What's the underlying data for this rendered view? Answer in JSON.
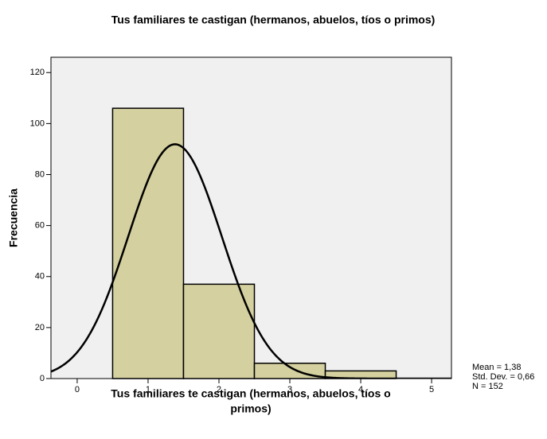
{
  "chart_data": {
    "type": "histogram",
    "title": "Tus familiares te castigan (hermanos, abuelos, tíos o primos)",
    "xlabel": [
      "Tus familiares te castigan (hermanos, abuelos, tíos o",
      "primos)"
    ],
    "ylabel": "Frecuencia",
    "bins": [
      0.5,
      1.5,
      2.5,
      3.5,
      4.5
    ],
    "values": [
      106,
      37,
      6,
      3
    ],
    "color": "#d4d09f",
    "background": "#f0f0f0",
    "curve_color": "#000000",
    "xlim": [
      -0.37,
      5.28
    ],
    "xticks": [
      0,
      1,
      2,
      3,
      4,
      5
    ],
    "ylim": [
      0,
      126
    ],
    "yticks": [
      0,
      20,
      40,
      60,
      80,
      100,
      120
    ],
    "stats": [
      {
        "value": 1.38,
        "label": "Mean = 1,38"
      },
      {
        "value": 0.66,
        "label": "Std. Dev. = 0,66"
      },
      {
        "value": 152,
        "label": "N = 152"
      }
    ]
  }
}
